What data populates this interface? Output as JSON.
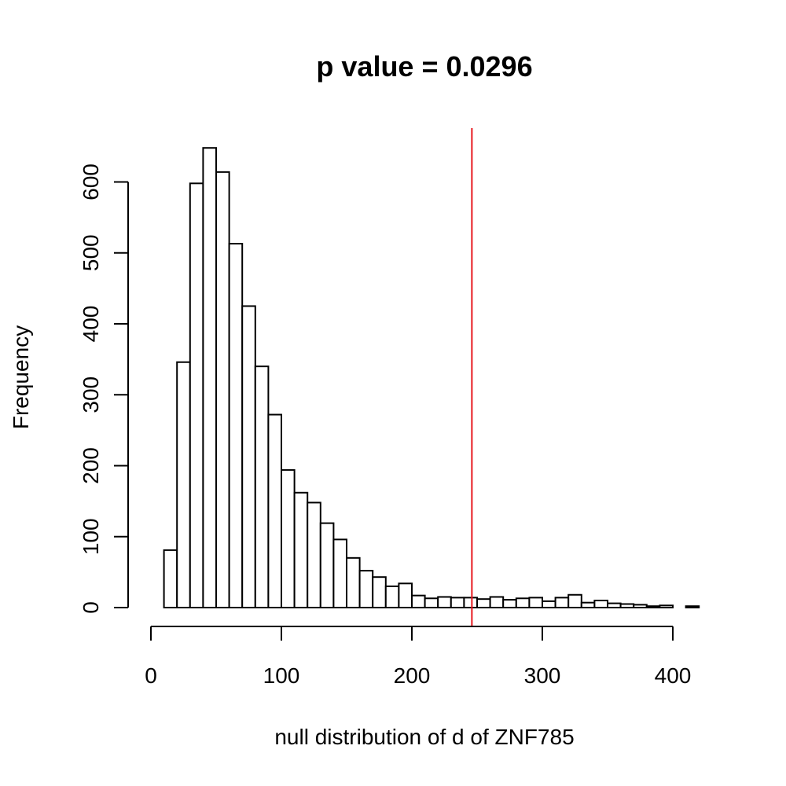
{
  "chart_data": {
    "type": "histogram",
    "title": "p value = 0.0296",
    "xlabel": "null distribution of d of ZNF785",
    "ylabel": "Frequency",
    "bin_width": 10,
    "bins": [
      {
        "start": 10,
        "end": 20,
        "count": 81
      },
      {
        "start": 20,
        "end": 30,
        "count": 346
      },
      {
        "start": 30,
        "end": 40,
        "count": 598
      },
      {
        "start": 40,
        "end": 50,
        "count": 648
      },
      {
        "start": 50,
        "end": 60,
        "count": 614
      },
      {
        "start": 60,
        "end": 70,
        "count": 513
      },
      {
        "start": 70,
        "end": 80,
        "count": 425
      },
      {
        "start": 80,
        "end": 90,
        "count": 340
      },
      {
        "start": 90,
        "end": 100,
        "count": 272
      },
      {
        "start": 100,
        "end": 110,
        "count": 194
      },
      {
        "start": 110,
        "end": 120,
        "count": 162
      },
      {
        "start": 120,
        "end": 130,
        "count": 148
      },
      {
        "start": 130,
        "end": 140,
        "count": 119
      },
      {
        "start": 140,
        "end": 150,
        "count": 96
      },
      {
        "start": 150,
        "end": 160,
        "count": 70
      },
      {
        "start": 160,
        "end": 170,
        "count": 52
      },
      {
        "start": 170,
        "end": 180,
        "count": 43
      },
      {
        "start": 180,
        "end": 190,
        "count": 30
      },
      {
        "start": 190,
        "end": 200,
        "count": 34
      },
      {
        "start": 200,
        "end": 210,
        "count": 17
      },
      {
        "start": 210,
        "end": 220,
        "count": 13
      },
      {
        "start": 220,
        "end": 230,
        "count": 15
      },
      {
        "start": 230,
        "end": 240,
        "count": 14
      },
      {
        "start": 240,
        "end": 250,
        "count": 14
      },
      {
        "start": 250,
        "end": 260,
        "count": 12
      },
      {
        "start": 260,
        "end": 270,
        "count": 15
      },
      {
        "start": 270,
        "end": 280,
        "count": 11
      },
      {
        "start": 280,
        "end": 290,
        "count": 13
      },
      {
        "start": 290,
        "end": 300,
        "count": 14
      },
      {
        "start": 300,
        "end": 310,
        "count": 9
      },
      {
        "start": 310,
        "end": 320,
        "count": 14
      },
      {
        "start": 320,
        "end": 330,
        "count": 18
      },
      {
        "start": 330,
        "end": 340,
        "count": 7
      },
      {
        "start": 340,
        "end": 350,
        "count": 10
      },
      {
        "start": 350,
        "end": 360,
        "count": 6
      },
      {
        "start": 360,
        "end": 370,
        "count": 5
      },
      {
        "start": 370,
        "end": 380,
        "count": 4
      },
      {
        "start": 380,
        "end": 390,
        "count": 2
      },
      {
        "start": 390,
        "end": 400,
        "count": 3
      },
      {
        "start": 400,
        "end": 410,
        "count": 0
      },
      {
        "start": 410,
        "end": 420,
        "count": 2
      }
    ],
    "reference_line": {
      "x": 246,
      "color": "#e8191f"
    },
    "x_ticks": [
      0,
      100,
      200,
      300,
      400
    ],
    "y_ticks": [
      0,
      100,
      200,
      300,
      400,
      500,
      600
    ],
    "xlim": [
      0,
      420
    ],
    "ylim": [
      0,
      648
    ],
    "grid": false,
    "legend": "none"
  }
}
